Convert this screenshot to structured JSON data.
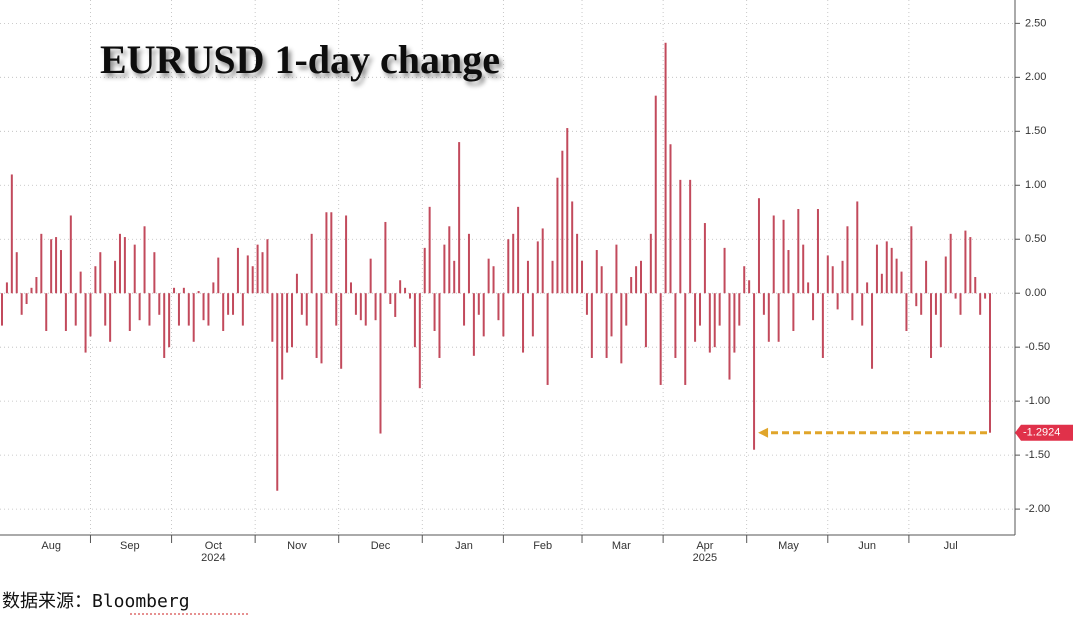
{
  "chart_data": {
    "type": "bar",
    "title": "EURUSD 1-day change",
    "source": "数据来源：Bloomberg",
    "color": "#c24a5c",
    "grid": true,
    "ylim": [
      -2.24,
      2.67
    ],
    "yticks": [
      {
        "value": 2.5,
        "label": "2.50"
      },
      {
        "value": 2.0,
        "label": "2.00"
      },
      {
        "value": 1.5,
        "label": "1.50"
      },
      {
        "value": 1.0,
        "label": "1.00"
      },
      {
        "value": 0.5,
        "label": "0.50"
      },
      {
        "value": 0,
        "label": "0.00"
      },
      {
        "value": -0.5,
        "label": "-0.50"
      },
      {
        "value": -1.0,
        "label": "-1.00"
      },
      {
        "value": -1.5,
        "label": "-1.50"
      },
      {
        "value": -2.0,
        "label": "-2.00"
      }
    ],
    "year_labels": [
      {
        "text": "2024",
        "under": "Oct"
      },
      {
        "text": "2025",
        "under": "Apr"
      }
    ],
    "categories": [
      null,
      null,
      null,
      null,
      null,
      null,
      null,
      null,
      null,
      null,
      "Aug",
      null,
      null,
      null,
      null,
      null,
      null,
      null,
      null,
      null,
      null,
      null,
      null,
      null,
      null,
      null,
      "Sep",
      null,
      null,
      null,
      null,
      null,
      null,
      null,
      null,
      null,
      null,
      null,
      null,
      null,
      null,
      null,
      null,
      "Oct",
      null,
      null,
      null,
      null,
      null,
      null,
      null,
      null,
      null,
      null,
      null,
      null,
      null,
      null,
      null,
      null,
      "Nov",
      null,
      null,
      null,
      null,
      null,
      null,
      null,
      null,
      null,
      null,
      null,
      null,
      null,
      null,
      null,
      null,
      "Dec",
      null,
      null,
      null,
      null,
      null,
      null,
      null,
      null,
      null,
      null,
      null,
      null,
      null,
      null,
      null,
      null,
      "Jan",
      null,
      null,
      null,
      null,
      null,
      null,
      null,
      null,
      null,
      null,
      null,
      null,
      null,
      null,
      null,
      "Feb",
      null,
      null,
      null,
      null,
      null,
      null,
      null,
      null,
      null,
      null,
      null,
      null,
      null,
      null,
      null,
      "Mar",
      null,
      null,
      null,
      null,
      null,
      null,
      null,
      null,
      null,
      null,
      null,
      null,
      null,
      null,
      null,
      null,
      "Apr",
      null,
      null,
      null,
      null,
      null,
      null,
      null,
      null,
      null,
      null,
      null,
      null,
      null,
      null,
      null,
      null,
      "May",
      null,
      null,
      null,
      null,
      null,
      null,
      null,
      null,
      null,
      null,
      null,
      null,
      null,
      null,
      null,
      "Jun",
      null,
      null,
      null,
      null,
      null,
      null,
      null,
      null,
      null,
      null,
      null,
      null,
      null,
      null,
      null,
      null,
      "Jul",
      null,
      null,
      null,
      null,
      null,
      null,
      null,
      null
    ],
    "values": [
      -0.3,
      0.1,
      1.1,
      0.38,
      -0.2,
      -0.1,
      0.05,
      0.15,
      0.55,
      -0.35,
      0.5,
      0.52,
      0.4,
      -0.35,
      0.72,
      -0.3,
      0.2,
      -0.55,
      -0.4,
      0.25,
      0.38,
      -0.3,
      -0.45,
      0.3,
      0.55,
      0.52,
      -0.35,
      0.45,
      -0.25,
      0.62,
      -0.3,
      0.38,
      -0.2,
      -0.6,
      -0.5,
      0.05,
      -0.3,
      0.05,
      -0.3,
      -0.45,
      0.02,
      -0.25,
      -0.3,
      0.1,
      0.33,
      -0.35,
      -0.2,
      -0.2,
      0.42,
      -0.3,
      0.35,
      0.25,
      0.45,
      0.38,
      0.5,
      -0.45,
      -1.83,
      -0.8,
      -0.55,
      -0.5,
      0.18,
      -0.2,
      -0.3,
      0.55,
      -0.6,
      -0.65,
      0.75,
      0.75,
      -0.3,
      -0.7,
      0.72,
      0.1,
      -0.2,
      -0.25,
      -0.3,
      0.32,
      -0.25,
      -1.3,
      0.66,
      -0.1,
      -0.22,
      0.12,
      0.05,
      -0.05,
      -0.5,
      -0.88,
      0.42,
      0.8,
      -0.35,
      -0.6,
      0.45,
      0.62,
      0.3,
      1.4,
      -0.3,
      0.55,
      -0.58,
      -0.2,
      -0.4,
      0.32,
      0.25,
      -0.25,
      -0.4,
      0.5,
      0.55,
      0.8,
      -0.55,
      0.3,
      -0.4,
      0.48,
      0.6,
      -0.85,
      0.3,
      1.07,
      1.32,
      1.53,
      0.85,
      0.55,
      0.3,
      -0.2,
      -0.6,
      0.4,
      0.25,
      -0.6,
      -0.4,
      0.45,
      -0.65,
      -0.3,
      0.15,
      0.25,
      0.3,
      -0.5,
      0.55,
      1.83,
      -0.85,
      2.32,
      1.38,
      -0.6,
      1.05,
      -0.85,
      1.05,
      -0.45,
      -0.3,
      0.65,
      -0.55,
      -0.5,
      -0.3,
      0.42,
      -0.8,
      -0.55,
      -0.3,
      0.25,
      0.12,
      -1.45,
      0.88,
      -0.2,
      -0.45,
      0.72,
      -0.45,
      0.68,
      0.4,
      -0.35,
      0.78,
      0.45,
      0.1,
      -0.25,
      0.78,
      -0.6,
      0.35,
      0.25,
      -0.15,
      0.3,
      0.62,
      -0.25,
      0.85,
      -0.3,
      0.1,
      -0.7,
      0.45,
      0.18,
      0.48,
      0.42,
      0.32,
      0.2,
      -0.35,
      0.62,
      -0.12,
      -0.2,
      0.3,
      -0.6,
      -0.2,
      -0.5,
      0.34,
      0.55,
      -0.05,
      -0.2,
      0.58,
      0.52,
      0.15,
      -0.2,
      -0.05,
      -1.2924
    ]
  }
}
